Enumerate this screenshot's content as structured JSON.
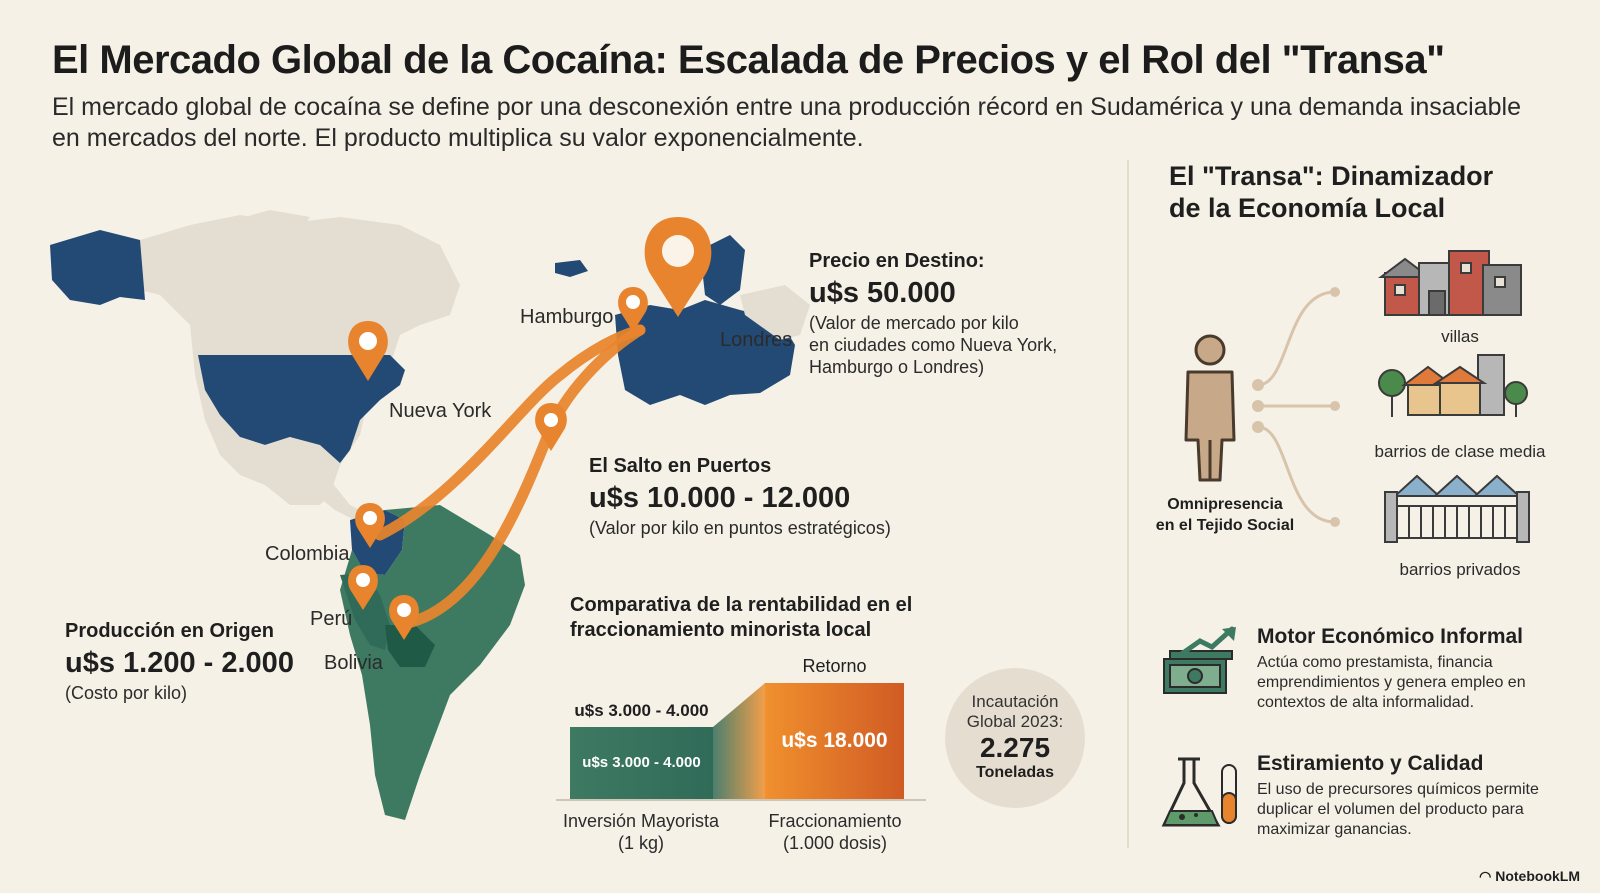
{
  "header": {
    "title": "El Mercado Global de la Cocaína: Escalada de Precios y el Rol del \"Transa\"",
    "subtitle": "El mercado global de cocaína se define por una desconexión entre una producción récord en Sudamérica y una demanda insaciable en mercados del norte. El producto multiplica su valor exponencialmente."
  },
  "map": {
    "cities": {
      "nueva_york": "Nueva York",
      "hamburgo": "Hamburgo",
      "londres": "Londres",
      "colombia": "Colombia",
      "peru": "Perú",
      "bolivia": "Bolivia"
    }
  },
  "destination": {
    "heading": "Precio en Destino:",
    "price": "u$s 50.000",
    "note_line1": "(Valor de mercado por kilo",
    "note_line2": "en ciudades como Nueva York,",
    "note_line3": "Hamburgo o Londres)"
  },
  "ports": {
    "heading": "El Salto en Puertos",
    "price": "u$s 10.000 - 12.000",
    "note": "(Valor por kilo en puntos estratégicos)"
  },
  "origin": {
    "heading": "Producción en Origen",
    "price": "u$s 1.200 - 2.000",
    "note": "(Costo por kilo)"
  },
  "comparison": {
    "title_line1": "Comparativa de la rentabilidad en el",
    "title_line2": "fraccionamiento minorista local",
    "left_top_label": "u$s 3.000 - 4.000",
    "left_bar_label": "u$s 3.000 - 4.000",
    "right_top_label": "Retorno",
    "right_bar_label": "u$s 18.000",
    "left_axis_line1": "Inversión Mayorista",
    "left_axis_line2": "(1 kg)",
    "right_axis_line1": "Fraccionamiento",
    "right_axis_line2": "(1.000 dosis)"
  },
  "seizure": {
    "line1": "Incautación",
    "line2": "Global 2023:",
    "value": "2.275",
    "unit": "Toneladas"
  },
  "transa": {
    "title_line1": "El \"Transa\": Dinamizador",
    "title_line2": "de la Economía Local",
    "person_label_line1": "Omnipresencia",
    "person_label_line2": "en el Tejido Social",
    "branches": [
      "villas",
      "barrios de clase media",
      "barrios privados"
    ]
  },
  "features": [
    {
      "title": "Motor Económico Informal",
      "body": "Actúa como prestamista, financia emprendimientos y genera empleo en contextos de alta informalidad."
    },
    {
      "title": "Estiramiento y Calidad",
      "body": "El uso de precursores químicos permite duplicar el volumen del producto para maximizar ganancias."
    }
  ],
  "brand": "NotebookLM",
  "colors": {
    "background": "#f6f1e6",
    "navy": "#234a74",
    "green": "#3e7a62",
    "orange": "#e8842d",
    "land": "#e3ddd2"
  }
}
